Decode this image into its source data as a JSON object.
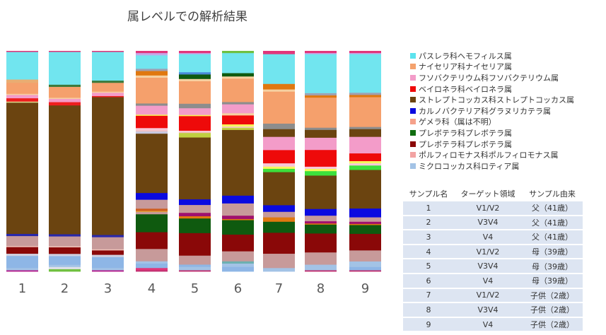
{
  "title": "属レベルでの解析結果",
  "chart_data": {
    "type": "bar",
    "stacked": true,
    "normalized": true,
    "title": "属レベルでの解析結果",
    "categories": [
      "1",
      "2",
      "3",
      "4",
      "5",
      "6",
      "7",
      "8",
      "9"
    ],
    "ylim": [
      0,
      1
    ],
    "legend_position": "right",
    "legend": [
      {
        "label": "パスレラ科ヘモフィルス属",
        "color": "#5ce3ee"
      },
      {
        "label": "ナイセリア科ナイセリア属",
        "color": "#f4a26d"
      },
      {
        "label": "フソバクテリウム科フソバクテリウム属",
        "color": "#f39cc9"
      },
      {
        "label": "ベイロネラ科ベイロネラ属",
        "color": "#ef0a0a"
      },
      {
        "label": "ストレプトコッカス科ストレプトコッカス属",
        "color": "#6b4410"
      },
      {
        "label": "カルノバクテリア科グラヌリカテラ属",
        "color": "#0a0ae0"
      },
      {
        "label": "ゲメラ科（属は不明）",
        "color": "#f5a18a"
      },
      {
        "label": "プレボテラ科プレボテラ属",
        "color": "#106d10"
      },
      {
        "label": "プレボテラ科プレボテラ属",
        "color": "#8a0808"
      },
      {
        "label": "ポルフィロモナス科ポルフィロモナス属",
        "color": "#f2a3a3"
      },
      {
        "label": "ミクロコッカス科ロティア属",
        "color": "#a3c3e6"
      }
    ],
    "bars": [
      [
        [
          0.005,
          "#e1367a"
        ],
        [
          0.125,
          "#71e5ef"
        ],
        [
          0.015,
          "#e9ad72"
        ],
        [
          0.05,
          "#f5a06c"
        ],
        [
          0.005,
          "#f6d0a0"
        ],
        [
          0.015,
          "#f39cc9"
        ],
        [
          0.015,
          "#ee1e1e"
        ],
        [
          0.005,
          "#e0d88c"
        ],
        [
          0.595,
          "#6b4410"
        ],
        [
          0.01,
          "#2828aa"
        ],
        [
          0.045,
          "#c79a9a"
        ],
        [
          0.005,
          "#f0c0b8"
        ],
        [
          0.03,
          "#8a0808"
        ],
        [
          0.01,
          "#d0d0e0"
        ],
        [
          0.055,
          "#8eb6e6"
        ],
        [
          0.01,
          "#a3c3e6"
        ],
        [
          0.005,
          "#b41e8c"
        ]
      ],
      [
        [
          0.005,
          "#e1367a"
        ],
        [
          0.15,
          "#71e5ef"
        ],
        [
          0.01,
          "#3c7a3c"
        ],
        [
          0.05,
          "#f5a06c"
        ],
        [
          0.005,
          "#f6d0a0"
        ],
        [
          0.015,
          "#f39cc9"
        ],
        [
          0.015,
          "#ee1e1e"
        ],
        [
          0.59,
          "#6b4410"
        ],
        [
          0.01,
          "#2828aa"
        ],
        [
          0.045,
          "#c79a9a"
        ],
        [
          0.005,
          "#f0c0b8"
        ],
        [
          0.03,
          "#8a0808"
        ],
        [
          0.01,
          "#d0d0e0"
        ],
        [
          0.04,
          "#8eb6e6"
        ],
        [
          0.01,
          "#a3c3e6"
        ],
        [
          0.01,
          "#e0e0e8"
        ],
        [
          0.01,
          "#70c040"
        ]
      ],
      [
        [
          0.005,
          "#e1367a"
        ],
        [
          0.13,
          "#71e5ef"
        ],
        [
          0.01,
          "#3c7a3c"
        ],
        [
          0.04,
          "#f5a06c"
        ],
        [
          0.005,
          "#f6d0a0"
        ],
        [
          0.015,
          "#f39cc9"
        ],
        [
          0.005,
          "#ee1e1e"
        ],
        [
          0.625,
          "#6b4410"
        ],
        [
          0.01,
          "#2828aa"
        ],
        [
          0.055,
          "#c79a9a"
        ],
        [
          0.005,
          "#f0c0b8"
        ],
        [
          0.02,
          "#8a0808"
        ],
        [
          0.01,
          "#d0d0e0"
        ],
        [
          0.05,
          "#8eb6e6"
        ],
        [
          0.01,
          "#a3c3e6"
        ],
        [
          0.005,
          "#b41e8c"
        ]
      ],
      [
        [
          0.01,
          "#e1367a"
        ],
        [
          0.01,
          "#c5a8e8"
        ],
        [
          0.06,
          "#71e5ef"
        ],
        [
          0.01,
          "#a0a0b0"
        ],
        [
          0.02,
          "#e07810"
        ],
        [
          0.01,
          "#f6d0a0"
        ],
        [
          0.115,
          "#f5a06c"
        ],
        [
          0.01,
          "#8d8d8d"
        ],
        [
          0.04,
          "#f39cc9"
        ],
        [
          0.005,
          "#f7f75a"
        ],
        [
          0.055,
          "#ee0a0a"
        ],
        [
          0.01,
          "#f8c8d8"
        ],
        [
          0.005,
          "#f0c0c0"
        ],
        [
          0.01,
          "#c8c8e0"
        ],
        [
          0.265,
          "#6b4410"
        ],
        [
          0.03,
          "#0a0ae0"
        ],
        [
          0.04,
          "#c79a9a"
        ],
        [
          0.01,
          "#d05e1e"
        ],
        [
          0.005,
          "#e0a040"
        ],
        [
          0.01,
          "#c79a9a"
        ],
        [
          0.08,
          "#0f5a0f"
        ],
        [
          0.075,
          "#8a0808"
        ],
        [
          0.055,
          "#c79a9a"
        ],
        [
          0.01,
          "#a3c3e6"
        ],
        [
          0.02,
          "#8eb6e6"
        ],
        [
          0.01,
          "#e1367a"
        ],
        [
          0.005,
          "#c03070"
        ]
      ],
      [
        [
          0.01,
          "#e1367a"
        ],
        [
          0.005,
          "#c5a8e8"
        ],
        [
          0.08,
          "#71e5ef"
        ],
        [
          0.01,
          "#4a8ad8"
        ],
        [
          0.02,
          "#0f5a0f"
        ],
        [
          0.01,
          "#f6d0a0"
        ],
        [
          0.1,
          "#f5a06c"
        ],
        [
          0.02,
          "#8d8d8d"
        ],
        [
          0.03,
          "#f39cc9"
        ],
        [
          0.005,
          "#f7f75a"
        ],
        [
          0.065,
          "#ee0a0a"
        ],
        [
          0.005,
          "#f8c8d8"
        ],
        [
          0.005,
          "#f0c0c0"
        ],
        [
          0.02,
          "#c0d040"
        ],
        [
          0.275,
          "#6b4410"
        ],
        [
          0.025,
          "#0a0ae0"
        ],
        [
          0.035,
          "#c79a9a"
        ],
        [
          0.015,
          "#a0106e"
        ],
        [
          0.01,
          "#e07810"
        ],
        [
          0.065,
          "#0f5a0f"
        ],
        [
          0.1,
          "#8a0808"
        ],
        [
          0.04,
          "#c79a9a"
        ],
        [
          0.01,
          "#8eb6e6"
        ],
        [
          0.015,
          "#a3c3e6"
        ],
        [
          0.005,
          "#c03070"
        ]
      ],
      [
        [
          0.01,
          "#70c040"
        ],
        [
          0.09,
          "#71e5ef"
        ],
        [
          0.015,
          "#0f5a0f"
        ],
        [
          0.01,
          "#f6d0a0"
        ],
        [
          0.105,
          "#f5a06c"
        ],
        [
          0.01,
          "#8d8d8d"
        ],
        [
          0.04,
          "#f39cc9"
        ],
        [
          0.01,
          "#f6d0a0"
        ],
        [
          0.04,
          "#ee0a0a"
        ],
        [
          0.01,
          "#f7f75a"
        ],
        [
          0.005,
          "#f8c8d8"
        ],
        [
          0.01,
          "#c0d040"
        ],
        [
          0.295,
          "#6b4410"
        ],
        [
          0.035,
          "#0a0ae0"
        ],
        [
          0.01,
          "#c79a9a"
        ],
        [
          0.045,
          "#c79a9a"
        ],
        [
          0.015,
          "#a0106e"
        ],
        [
          0.005,
          "#e07810"
        ],
        [
          0.065,
          "#0f5a0f"
        ],
        [
          0.075,
          "#8a0808"
        ],
        [
          0.045,
          "#c79a9a"
        ],
        [
          0.01,
          "#6cb0b0"
        ],
        [
          0.015,
          "#a3c3e6"
        ],
        [
          0.02,
          "#8eb6e6"
        ]
      ],
      [
        [
          0.015,
          "#e1367a"
        ],
        [
          0.135,
          "#71e5ef"
        ],
        [
          0.025,
          "#e07810"
        ],
        [
          0.01,
          "#f6d0a0"
        ],
        [
          0.145,
          "#f5a06c"
        ],
        [
          0.025,
          "#8d8d8d"
        ],
        [
          0.035,
          "#6b4410"
        ],
        [
          0.06,
          "#f39cc9"
        ],
        [
          0.06,
          "#ee0a0a"
        ],
        [
          0.015,
          "#f8c8d8"
        ],
        [
          0.01,
          "#f7f75a"
        ],
        [
          0.015,
          "#3ce03c"
        ],
        [
          0.15,
          "#6b4410"
        ],
        [
          0.03,
          "#0a0ae0"
        ],
        [
          0.025,
          "#c79a9a"
        ],
        [
          0.02,
          "#e07810"
        ],
        [
          0.05,
          "#0f5a0f"
        ],
        [
          0.095,
          "#8a0808"
        ],
        [
          0.065,
          "#c79a9a"
        ],
        [
          0.015,
          "#a3c3e6"
        ]
      ],
      [
        [
          0.01,
          "#e1367a"
        ],
        [
          0.005,
          "#c5a8e8"
        ],
        [
          0.175,
          "#71e5ef"
        ],
        [
          0.01,
          "#a0a0b0"
        ],
        [
          0.01,
          "#e07810"
        ],
        [
          0.135,
          "#f5a06c"
        ],
        [
          0.01,
          "#8d8d8d"
        ],
        [
          0.035,
          "#6b4410"
        ],
        [
          0.055,
          "#f39cc9"
        ],
        [
          0.075,
          "#ee0a0a"
        ],
        [
          0.01,
          "#f8c8d8"
        ],
        [
          0.01,
          "#f7f75a"
        ],
        [
          0.02,
          "#3ce03c"
        ],
        [
          0.15,
          "#6b4410"
        ],
        [
          0.03,
          "#0a0ae0"
        ],
        [
          0.025,
          "#c79a9a"
        ],
        [
          0.01,
          "#a0106e"
        ],
        [
          0.005,
          "#e07810"
        ],
        [
          0.04,
          "#0f5a0f"
        ],
        [
          0.085,
          "#8a0808"
        ],
        [
          0.055,
          "#c79a9a"
        ],
        [
          0.025,
          "#a3c3e6"
        ],
        [
          0.005,
          "#c03070"
        ]
      ],
      [
        [
          0.01,
          "#e1367a"
        ],
        [
          0.005,
          "#c5a8e8"
        ],
        [
          0.175,
          "#71e5ef"
        ],
        [
          0.01,
          "#a0a0b0"
        ],
        [
          0.01,
          "#e07810"
        ],
        [
          0.135,
          "#f5a06c"
        ],
        [
          0.01,
          "#8d8d8d"
        ],
        [
          0.035,
          "#6b4410"
        ],
        [
          0.075,
          "#f39cc9"
        ],
        [
          0.035,
          "#ee0a0a"
        ],
        [
          0.01,
          "#f7f75a"
        ],
        [
          0.01,
          "#f8c8d8"
        ],
        [
          0.02,
          "#3ce03c"
        ],
        [
          0.175,
          "#6b4410"
        ],
        [
          0.04,
          "#0a0ae0"
        ],
        [
          0.02,
          "#c79a9a"
        ],
        [
          0.01,
          "#a0106e"
        ],
        [
          0.005,
          "#e07810"
        ],
        [
          0.04,
          "#0f5a0f"
        ],
        [
          0.075,
          "#8a0808"
        ],
        [
          0.05,
          "#c79a9a"
        ],
        [
          0.025,
          "#a3c3e6"
        ],
        [
          0.015,
          "#8eb6e6"
        ],
        [
          0.005,
          "#c03070"
        ]
      ]
    ]
  },
  "table": {
    "headers": [
      "サンプル名",
      "ターゲット領域",
      "サンプル由来"
    ],
    "rows": [
      [
        "1",
        "V1/V2",
        "父（41歳）"
      ],
      [
        "2",
        "V3V4",
        "父（41歳）"
      ],
      [
        "3",
        "V4",
        "父（41歳）"
      ],
      [
        "4",
        "V1/V2",
        "母（39歳）"
      ],
      [
        "5",
        "V3V4",
        "母（39歳）"
      ],
      [
        "6",
        "V4",
        "母（39歳）"
      ],
      [
        "7",
        "V1/V2",
        "子供（2歳）"
      ],
      [
        "8",
        "V3V4",
        "子供（2歳）"
      ],
      [
        "9",
        "V4",
        "子供（2歳）"
      ]
    ]
  }
}
